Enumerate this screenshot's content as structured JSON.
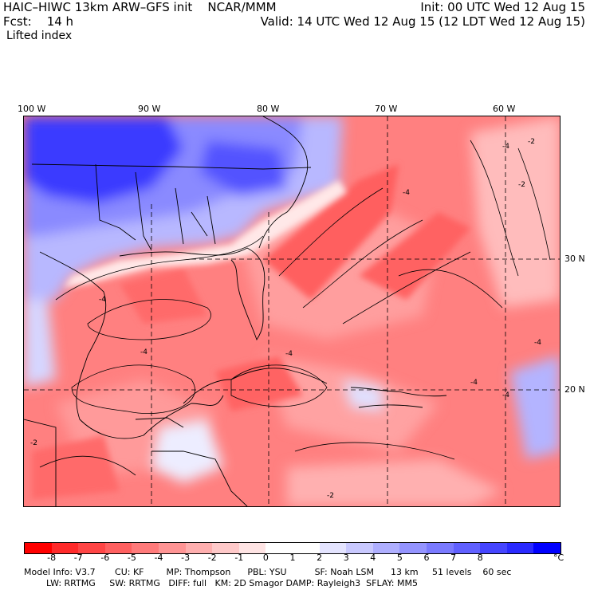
{
  "header": {
    "line1_left": "HAIC–HIWC 13km ARW–GFS init    NCAR/MMM",
    "line2_left": "Fcst:    14 h",
    "field": "Lifted index",
    "line1_right": "Init: 00 UTC Wed 12 Aug 15",
    "line2_right": "Valid: 14 UTC Wed 12 Aug 15 (12 LDT Wed 12 Aug 15)"
  },
  "map": {
    "lon_labels": [
      "100 W",
      "90 W",
      "80 W",
      "70 W",
      "60 W"
    ],
    "lat_labels": [
      "30 N",
      "20 N"
    ],
    "contour_labels": [
      "-2",
      "-2",
      "-4",
      "-4",
      "-4",
      "-4",
      "-4",
      "-4",
      "-2",
      "-2",
      "-4",
      "-4"
    ]
  },
  "colorbar": {
    "colors": [
      "#ff0000",
      "#ff2a2a",
      "#ff4545",
      "#ff6060",
      "#ff7a7a",
      "#ff9494",
      "#ffafaf",
      "#ffc9c9",
      "#ffe4e4",
      "#ffffff",
      "#ffffff",
      "#e4e4ff",
      "#c9c9ff",
      "#afafff",
      "#9494ff",
      "#7a7aff",
      "#6060ff",
      "#4545ff",
      "#2a2aff",
      "#0000ff"
    ],
    "ticks": [
      "-8",
      "-7",
      "-6",
      "-5",
      "-4",
      "-3",
      "-2",
      "-1",
      "0",
      "1",
      "2",
      "3",
      "4",
      "5",
      "6",
      "7",
      "8"
    ],
    "unit": "°C"
  },
  "info": {
    "line1": "Model Info: V3.7       CU: KF        MP: Thompson      PBL: YSU          SF: Noah LSM      13 km     51 levels    60 sec",
    "line2": "        LW: RRTMG     SW: RRTMG   DIFF: full   KM: 2D Smagor DAMP: Rayleigh3  SFLAY: MM5"
  }
}
